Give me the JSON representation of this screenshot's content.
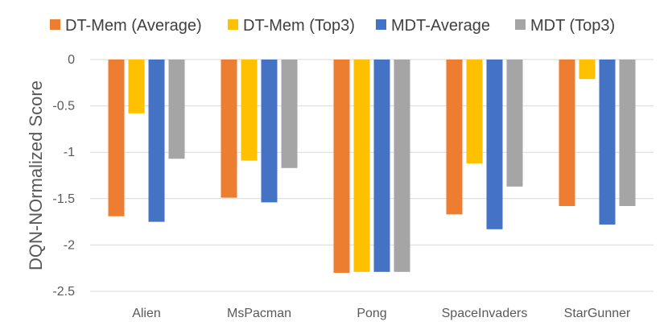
{
  "chart_data": {
    "type": "bar",
    "title": "",
    "xlabel": "",
    "ylabel": "DQN-NOrmalized Score",
    "ylim": [
      -2.5,
      0
    ],
    "yticks": [
      "0",
      "-0.5",
      "-1",
      "-1.5",
      "-2",
      "-2.5"
    ],
    "ytick_values": [
      0,
      -0.5,
      -1,
      -1.5,
      -2,
      -2.5
    ],
    "grid": true,
    "legend_position": "top",
    "categories": [
      "Alien",
      "MsPacman",
      "Pong",
      "SpaceInvaders",
      "StarGunner"
    ],
    "series": [
      {
        "name": "DT-Mem (Average)",
        "color": "#ED7D31",
        "values": [
          -1.69,
          -1.49,
          -2.3,
          -1.67,
          -1.58
        ]
      },
      {
        "name": "DT-Mem (Top3)",
        "color": "#FFC000",
        "values": [
          -0.58,
          -1.09,
          -2.29,
          -1.12,
          -0.21
        ]
      },
      {
        "name": "MDT-Average",
        "color": "#4472C4",
        "values": [
          -1.75,
          -1.54,
          -2.29,
          -1.83,
          -1.78
        ]
      },
      {
        "name": "MDT (Top3)",
        "color": "#A5A5A5",
        "values": [
          -1.07,
          -1.17,
          -2.29,
          -1.37,
          -1.58
        ]
      }
    ]
  }
}
